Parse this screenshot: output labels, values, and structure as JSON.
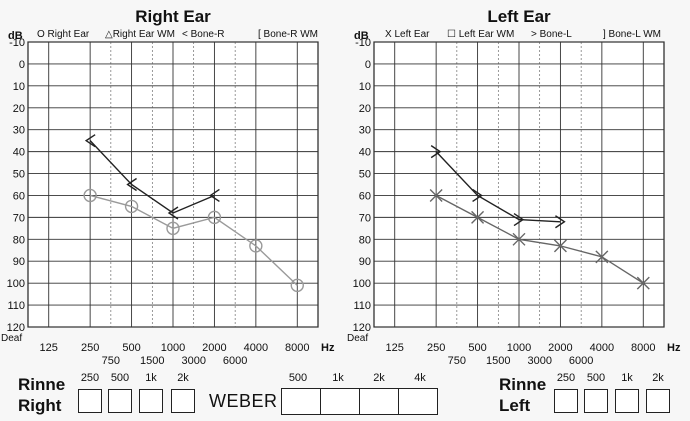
{
  "right_chart": {
    "title": "Right Ear",
    "legend": [
      "O Right Ear",
      "△Right Ear WM",
      "< Bone-R",
      "[ Bone-R WM"
    ],
    "y_unit": "dB",
    "x_unit": "Hz",
    "y_extra_label": "Deaf"
  },
  "left_chart": {
    "title": "Left Ear",
    "legend": [
      "X Left Ear",
      "☐ Left Ear WM",
      "> Bone-L",
      "] Bone-L WM"
    ],
    "y_unit": "dB",
    "x_unit": "Hz",
    "y_extra_label": "Deaf"
  },
  "chart_data": [
    {
      "type": "line",
      "title": "Right Ear",
      "ylabel": "dB",
      "xlabel": "Hz",
      "y_inverted": true,
      "ylim": [
        -10,
        120
      ],
      "y_ticks": [
        "-10",
        "0",
        "10",
        "20",
        "30",
        "40",
        "50",
        "60",
        "70",
        "80",
        "90",
        "100",
        "110",
        "120"
      ],
      "x_ticks_main": [
        "125",
        "250",
        "500",
        "1000",
        "2000",
        "4000",
        "8000"
      ],
      "x_ticks_mid": [
        "750",
        "1500",
        "3000",
        "6000"
      ],
      "grid": true,
      "series": [
        {
          "name": "Right Ear",
          "marker": "circle",
          "color": "#9a9a9a",
          "x": [
            "250",
            "500",
            "1000",
            "2000",
            "4000",
            "8000"
          ],
          "y": [
            60,
            65,
            75,
            70,
            83,
            101
          ]
        },
        {
          "name": "Bone-R",
          "marker": "<",
          "color": "#222222",
          "x": [
            "250",
            "500",
            "1000",
            "2000"
          ],
          "y": [
            35,
            55,
            68,
            60
          ]
        }
      ]
    },
    {
      "type": "line",
      "title": "Left Ear",
      "ylabel": "dB",
      "xlabel": "Hz",
      "y_inverted": true,
      "ylim": [
        -10,
        120
      ],
      "y_ticks": [
        "-10",
        "0",
        "10",
        "20",
        "30",
        "40",
        "50",
        "60",
        "70",
        "80",
        "90",
        "100",
        "110",
        "120"
      ],
      "x_ticks_main": [
        "125",
        "250",
        "500",
        "1000",
        "2000",
        "4000",
        "8000"
      ],
      "x_ticks_mid": [
        "750",
        "1500",
        "3000",
        "6000"
      ],
      "grid": true,
      "series": [
        {
          "name": "Left Ear",
          "marker": "x",
          "color": "#666666",
          "x": [
            "250",
            "500",
            "1000",
            "2000",
            "4000",
            "8000"
          ],
          "y": [
            60,
            70,
            80,
            83,
            88,
            100
          ]
        },
        {
          "name": "Bone-L",
          "marker": ">",
          "color": "#222222",
          "x": [
            "250",
            "500",
            "1000",
            "2000"
          ],
          "y": [
            40,
            60,
            71,
            72
          ]
        }
      ]
    }
  ],
  "rinne_right": {
    "label_line1": "Rinne",
    "label_line2": "Right",
    "freqs": [
      "250",
      "500",
      "1k",
      "2k"
    ]
  },
  "weber": {
    "label": "WEBER",
    "freqs": [
      "500",
      "1k",
      "2k",
      "4k"
    ]
  },
  "rinne_left": {
    "label_line1": "Rinne",
    "label_line2": "Left",
    "freqs": [
      "250",
      "500",
      "1k",
      "2k"
    ]
  }
}
